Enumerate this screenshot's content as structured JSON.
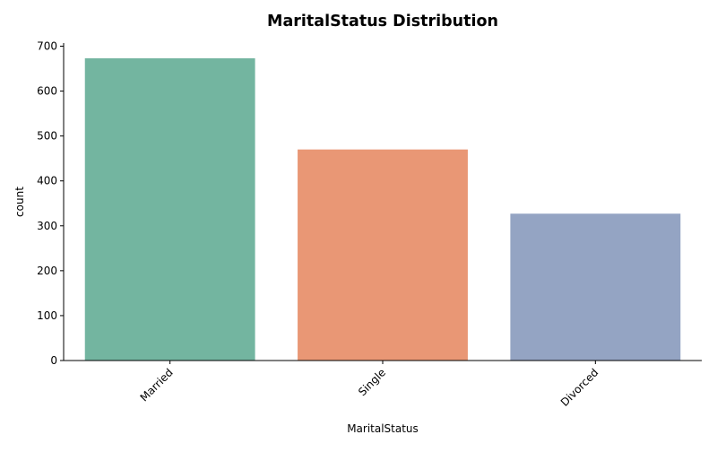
{
  "chart_data": {
    "type": "bar",
    "title": "MaritalStatus Distribution",
    "xlabel": "MaritalStatus",
    "ylabel": "count",
    "categories": [
      "Married",
      "Single",
      "Divorced"
    ],
    "values": [
      673,
      470,
      327
    ],
    "colors": [
      "#73b5a0",
      "#e99775",
      "#94a4c3"
    ],
    "ylim": [
      0,
      707
    ],
    "yticks": [
      0,
      100,
      200,
      300,
      400,
      500,
      600,
      700
    ],
    "x_tick_rotation": 45,
    "grid": false,
    "legend": "none"
  }
}
